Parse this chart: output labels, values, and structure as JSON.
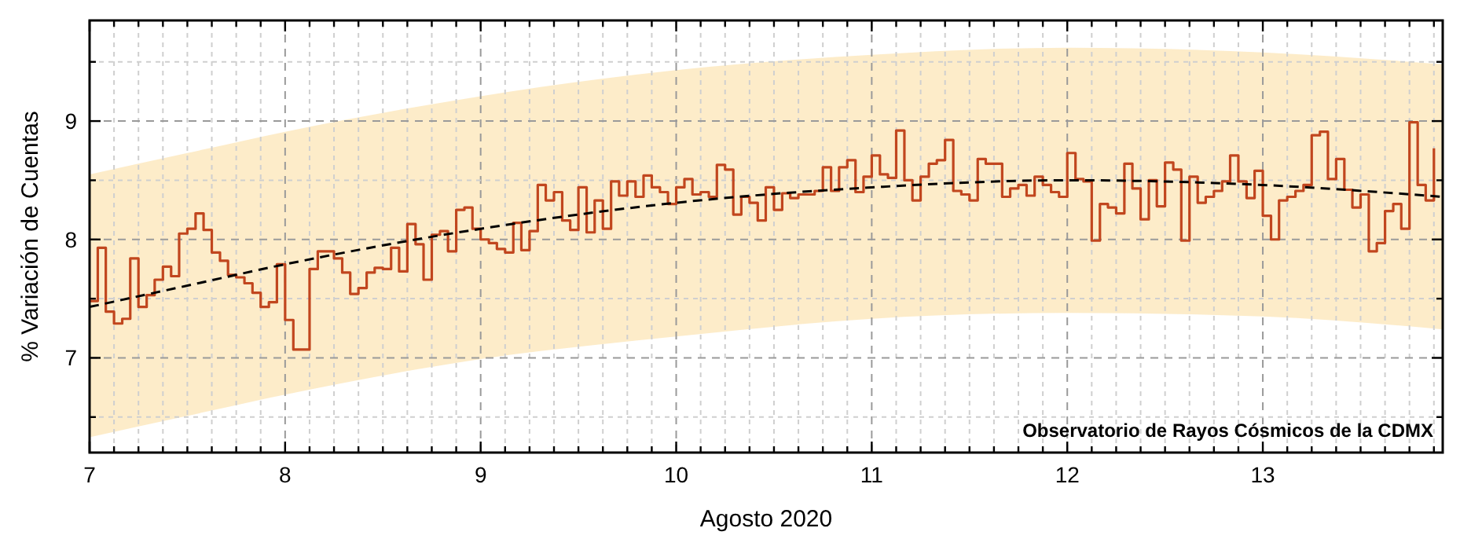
{
  "chart_data": {
    "type": "step",
    "xlabel": "Agosto 2020",
    "ylabel": "% Variación de Cuentas",
    "annotations": [
      "Observatorio de Rayos Cósmicos de la CDMX"
    ],
    "xlim": [
      7,
      13.92
    ],
    "ylim": [
      6.2,
      9.85
    ],
    "xticks": [
      7,
      {
        "value": 7.125,
        "label": null
      },
      {
        "value": 7.25,
        "label": null
      },
      {
        "value": 7.375,
        "label": null
      },
      {
        "value": 7.5,
        "label": null
      },
      {
        "value": 7.625,
        "label": null
      },
      {
        "value": 7.75,
        "label": null
      },
      {
        "value": 7.875,
        "label": null
      },
      8,
      {
        "value": 8.125,
        "label": null
      },
      {
        "value": 8.25,
        "label": null
      },
      {
        "value": 8.375,
        "label": null
      },
      {
        "value": 8.5,
        "label": null
      },
      {
        "value": 8.625,
        "label": null
      },
      {
        "value": 8.75,
        "label": null
      },
      {
        "value": 8.875,
        "label": null
      },
      9,
      {
        "value": 9.125,
        "label": null
      },
      {
        "value": 9.25,
        "label": null
      },
      {
        "value": 9.375,
        "label": null
      },
      {
        "value": 9.5,
        "label": null
      },
      {
        "value": 9.625,
        "label": null
      },
      {
        "value": 9.75,
        "label": null
      },
      {
        "value": 9.875,
        "label": null
      },
      10,
      {
        "value": 10.125,
        "label": null
      },
      {
        "value": 10.25,
        "label": null
      },
      {
        "value": 10.375,
        "label": null
      },
      {
        "value": 10.5,
        "label": null
      },
      {
        "value": 10.625,
        "label": null
      },
      {
        "value": 10.75,
        "label": null
      },
      {
        "value": 10.875,
        "label": null
      },
      11,
      {
        "value": 11.125,
        "label": null
      },
      {
        "value": 11.25,
        "label": null
      },
      {
        "value": 11.375,
        "label": null
      },
      {
        "value": 11.5,
        "label": null
      },
      {
        "value": 11.625,
        "label": null
      },
      {
        "value": 11.75,
        "label": null
      },
      {
        "value": 11.875,
        "label": null
      },
      12,
      {
        "value": 12.125,
        "label": null
      },
      {
        "value": 12.25,
        "label": null
      },
      {
        "value": 12.375,
        "label": null
      },
      {
        "value": 12.5,
        "label": null
      },
      {
        "value": 12.625,
        "label": null
      },
      {
        "value": 12.75,
        "label": null
      },
      {
        "value": 12.875,
        "label": null
      },
      13,
      {
        "value": 13.125,
        "label": null
      },
      {
        "value": 13.25,
        "label": null
      },
      {
        "value": 13.375,
        "label": null
      },
      {
        "value": 13.5,
        "label": null
      },
      {
        "value": 13.625,
        "label": null
      },
      {
        "value": 13.75,
        "label": null
      },
      {
        "value": 13.875,
        "label": null
      }
    ],
    "yticks": [
      {
        "value": 6.5,
        "label": null
      },
      7,
      {
        "value": 7.5,
        "label": null
      },
      8,
      {
        "value": 8.5,
        "label": null
      },
      9,
      {
        "value": 9.5,
        "label": null
      }
    ],
    "grid": true,
    "series": [
      {
        "type": "step",
        "color": "#c1461e",
        "x": [
          7,
          7.042,
          7.083,
          7.125,
          7.167,
          7.208,
          7.25,
          7.292,
          7.333,
          7.375,
          7.417,
          7.458,
          7.5,
          7.542,
          7.583,
          7.625,
          7.667,
          7.708,
          7.75,
          7.792,
          7.833,
          7.875,
          7.917,
          7.958,
          8,
          8.042,
          8.083,
          8.125,
          8.167,
          8.208,
          8.25,
          8.292,
          8.333,
          8.375,
          8.417,
          8.458,
          8.5,
          8.542,
          8.583,
          8.625,
          8.667,
          8.708,
          8.75,
          8.792,
          8.833,
          8.875,
          8.917,
          8.958,
          9,
          9.042,
          9.083,
          9.125,
          9.167,
          9.208,
          9.25,
          9.292,
          9.333,
          9.375,
          9.417,
          9.458,
          9.5,
          9.542,
          9.583,
          9.625,
          9.667,
          9.708,
          9.75,
          9.792,
          9.833,
          9.875,
          9.917,
          9.958,
          10,
          10.042,
          10.083,
          10.125,
          10.167,
          10.208,
          10.25,
          10.292,
          10.333,
          10.375,
          10.417,
          10.458,
          10.5,
          10.542,
          10.583,
          10.625,
          10.667,
          10.708,
          10.75,
          10.792,
          10.833,
          10.875,
          10.917,
          10.958,
          11,
          11.042,
          11.083,
          11.125,
          11.167,
          11.208,
          11.25,
          11.292,
          11.333,
          11.375,
          11.417,
          11.458,
          11.5,
          11.542,
          11.583,
          11.625,
          11.667,
          11.708,
          11.75,
          11.792,
          11.833,
          11.875,
          11.917,
          11.958,
          12,
          12.042,
          12.083,
          12.125,
          12.167,
          12.208,
          12.25,
          12.292,
          12.333,
          12.375,
          12.417,
          12.458,
          12.5,
          12.542,
          12.583,
          12.625,
          12.667,
          12.708,
          12.75,
          12.792,
          12.833,
          12.875,
          12.917,
          12.958,
          13,
          13.042,
          13.083,
          13.125,
          13.167,
          13.208,
          13.25,
          13.292,
          13.333,
          13.375,
          13.417,
          13.458,
          13.5,
          13.542,
          13.583,
          13.625,
          13.667,
          13.708,
          13.75,
          13.792,
          13.833,
          13.875
        ],
        "values": [
          7.48,
          7.93,
          7.39,
          7.29,
          7.33,
          7.84,
          7.43,
          7.53,
          7.66,
          7.77,
          7.69,
          8.05,
          8.09,
          8.22,
          8.08,
          7.89,
          7.82,
          7.7,
          7.68,
          7.63,
          7.55,
          7.43,
          7.47,
          7.79,
          7.32,
          7.07,
          7.07,
          7.75,
          7.9,
          7.9,
          7.84,
          7.72,
          7.54,
          7.59,
          7.72,
          7.76,
          7.75,
          7.93,
          7.73,
          8.13,
          7.96,
          7.66,
          8.04,
          8.07,
          7.9,
          8.25,
          8.27,
          8.09,
          8.0,
          7.97,
          7.92,
          7.89,
          8.14,
          7.91,
          8.07,
          8.46,
          8.33,
          8.4,
          8.16,
          8.08,
          8.44,
          8.06,
          8.33,
          8.09,
          8.49,
          8.37,
          8.49,
          8.36,
          8.54,
          8.44,
          8.4,
          8.3,
          8.44,
          8.51,
          8.38,
          8.4,
          8.36,
          8.63,
          8.59,
          8.21,
          8.36,
          8.31,
          8.16,
          8.44,
          8.25,
          8.39,
          8.35,
          8.38,
          8.38,
          8.41,
          8.61,
          8.41,
          8.61,
          8.67,
          8.4,
          8.53,
          8.71,
          8.55,
          8.52,
          8.92,
          8.5,
          8.33,
          8.53,
          8.64,
          8.67,
          8.84,
          8.41,
          8.38,
          8.33,
          8.68,
          8.64,
          8.64,
          8.36,
          8.43,
          8.46,
          8.37,
          8.53,
          8.46,
          8.4,
          8.36,
          8.73,
          8.51,
          8.49,
          7.99,
          8.3,
          8.27,
          8.22,
          8.64,
          8.43,
          8.17,
          8.5,
          8.28,
          8.65,
          8.59,
          7.99,
          8.53,
          8.31,
          8.36,
          8.41,
          8.49,
          8.71,
          8.49,
          8.35,
          8.58,
          8.2,
          8.0,
          8.33,
          8.36,
          8.41,
          8.46,
          8.88,
          8.91,
          8.51,
          8.68,
          8.42,
          8.27,
          8.38,
          7.9,
          7.97,
          8.24,
          8.3,
          8.09,
          8.99,
          8.46,
          8.33,
          8.77
        ]
      },
      {
        "type": "line",
        "color": "#000000",
        "line_style": "dashed",
        "x": [
          7,
          7.5,
          8,
          9,
          10,
          11,
          12,
          13,
          13.92
        ],
        "values": [
          7.43,
          7.61,
          7.79,
          8.09,
          8.31,
          8.44,
          8.5,
          8.46,
          8.36
        ],
        "lower": [
          6.33,
          6.51,
          6.69,
          6.99,
          7.18,
          7.33,
          7.38,
          7.35,
          7.24
        ],
        "upper": [
          8.55,
          8.73,
          8.91,
          9.21,
          9.43,
          9.56,
          9.62,
          9.58,
          9.48
        ]
      }
    ]
  }
}
